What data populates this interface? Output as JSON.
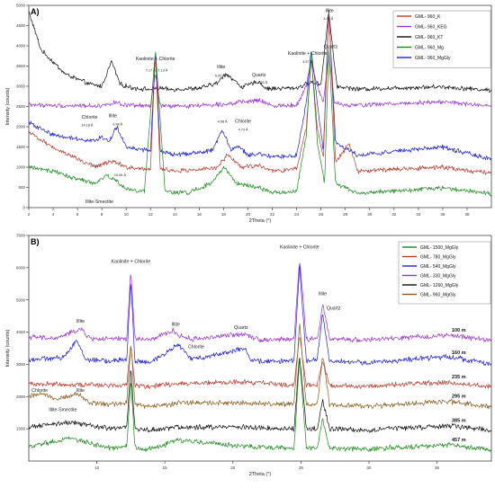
{
  "chart_data": [
    {
      "type": "line",
      "panel_label": "A)",
      "xlabel": "2Theta (°)",
      "ylabel": "Intensity (counts)",
      "xlim": [
        2,
        40
      ],
      "ylim": [
        0,
        5000
      ],
      "x_ticks": [
        2,
        4,
        6,
        8,
        10,
        12,
        14,
        16,
        18,
        20,
        22,
        24,
        26,
        28,
        30,
        32,
        34,
        36,
        38
      ],
      "y_ticks": [
        0,
        500,
        1000,
        1500,
        2000,
        2500,
        3000,
        3500,
        4000,
        4500,
        5000
      ],
      "legend": {
        "placement": "top-right",
        "entries": [
          {
            "name": "GML- 960_K",
            "color": "#c0392b"
          },
          {
            "name": "GML- 960_KEG",
            "color": "#9b30d9"
          },
          {
            "name": "GML- 960_KT",
            "color": "#111111"
          },
          {
            "name": "GML- 960_Mg",
            "color": "#1a8a1a"
          },
          {
            "name": "GML- 960_MgGly",
            "color": "#1f1fd8"
          }
        ]
      },
      "series": [
        {
          "name": "GML- 960_KT",
          "color": "#111111",
          "baseline": 2900,
          "x": [
            2,
            3,
            5,
            7,
            8,
            8.8,
            9.5,
            10.5,
            12,
            12.6,
            13.5,
            16,
            17.5,
            18.2,
            19.5,
            20.9,
            21.5,
            24,
            25.2,
            26,
            26.64,
            27.3,
            29,
            35.9,
            40
          ],
          "y": [
            4850,
            3900,
            3300,
            3050,
            3000,
            3620,
            3050,
            2960,
            2920,
            2960,
            2920,
            2950,
            3080,
            3320,
            2980,
            3120,
            2940,
            2960,
            3100,
            3050,
            4850,
            3000,
            2930,
            2990,
            2900
          ]
        },
        {
          "name": "GML- 960_KEG",
          "color": "#9b30d9",
          "baseline": 2500,
          "x": [
            2,
            4,
            8,
            9,
            10,
            12,
            12.4,
            12.8,
            14,
            18,
            20.9,
            22,
            24,
            24.8,
            25.2,
            25.7,
            26.2,
            26.64,
            27.1,
            28,
            35.9,
            40
          ],
          "y": [
            2550,
            2520,
            2520,
            2600,
            2520,
            2520,
            3300,
            2520,
            2500,
            2560,
            2650,
            2520,
            2540,
            3000,
            3650,
            3000,
            2600,
            3800,
            2600,
            2520,
            2620,
            2500
          ]
        },
        {
          "name": "GML- 960_MgGly",
          "color": "#1f1fd8",
          "baseline": 1200,
          "x": [
            2,
            4,
            6,
            7.5,
            8,
            8.6,
            9.2,
            10,
            12,
            12.4,
            12.8,
            14,
            17,
            17.9,
            18.6,
            19.3,
            20,
            20.9,
            22,
            24,
            24.8,
            25.2,
            25.7,
            26.2,
            26.64,
            27.2,
            29,
            35.9,
            40
          ],
          "y": [
            2100,
            1800,
            1700,
            1650,
            1750,
            1620,
            2000,
            1500,
            1400,
            3900,
            1400,
            1300,
            1400,
            1900,
            1450,
            1500,
            1300,
            1320,
            1250,
            1280,
            2600,
            3900,
            2600,
            1400,
            4900,
            1600,
            1300,
            1500,
            1200
          ]
        },
        {
          "name": "GML- 960_K",
          "color": "#c0392b",
          "baseline": 850,
          "x": [
            2,
            4,
            6,
            7.5,
            8,
            9,
            10,
            12,
            12.4,
            12.8,
            14,
            17.5,
            18.3,
            19.5,
            20.9,
            22,
            24,
            24.8,
            25.2,
            25.7,
            26.2,
            26.64,
            27.2,
            28.3,
            29,
            35.9,
            40
          ],
          "y": [
            1850,
            1500,
            1200,
            1000,
            1080,
            1150,
            1000,
            950,
            3800,
            950,
            900,
            980,
            1300,
            1000,
            1050,
            900,
            950,
            2000,
            3700,
            2000,
            1200,
            4900,
            1100,
            1600,
            900,
            1000,
            850
          ]
        },
        {
          "name": "GML- 960_Mg",
          "color": "#1a8a1a",
          "baseline": 350,
          "x": [
            2,
            3,
            4,
            6,
            7.5,
            8.4,
            9,
            10,
            11.5,
            12.4,
            13.2,
            15,
            17,
            18.1,
            19,
            20.9,
            22,
            24,
            24.8,
            25.2,
            25.7,
            26.3,
            26.64,
            27.2,
            29,
            35.9,
            40
          ],
          "y": [
            1000,
            950,
            900,
            700,
            600,
            800,
            700,
            450,
            400,
            3900,
            400,
            360,
            600,
            1000,
            600,
            500,
            370,
            400,
            1800,
            3900,
            1600,
            600,
            4000,
            600,
            360,
            480,
            350
          ]
        }
      ],
      "annotations": [
        {
          "text": "Illite",
          "x": 26.7,
          "y": 4830
        },
        {
          "text": "3.34 Å",
          "x": 26.6,
          "y": 4640
        },
        {
          "text": "Quartz",
          "x": 26.8,
          "y": 3950
        },
        {
          "text": "Kaolinite + Chlorite",
          "x": 24.9,
          "y": 3780
        },
        {
          "text": "3.57 Å",
          "x": 24.9,
          "y": 3580
        },
        {
          "text": "Kaolinite + Chlorite",
          "x": 12.4,
          "y": 3650
        },
        {
          "text": "7.17 Å",
          "x": 12.0,
          "y": 3370
        },
        {
          "text": "7.13 Å",
          "x": 13.0,
          "y": 3370
        },
        {
          "text": "Illite",
          "x": 17.8,
          "y": 3450
        },
        {
          "text": "5.00 Å",
          "x": 17.7,
          "y": 3230
        },
        {
          "text": "Quartz",
          "x": 20.9,
          "y": 3250
        },
        {
          "text": "4.25 Å",
          "x": 21.2,
          "y": 3070
        },
        {
          "text": "Chlorite",
          "x": 7.0,
          "y": 2200
        },
        {
          "text": "14.18 Å",
          "x": 6.8,
          "y": 2010
        },
        {
          "text": "Illite",
          "x": 8.9,
          "y": 2230
        },
        {
          "text": "9.98 Å",
          "x": 9.3,
          "y": 2030
        },
        {
          "text": "4.98 Å",
          "x": 17.9,
          "y": 2100
        },
        {
          "text": "Chlorite",
          "x": 19.6,
          "y": 2100
        },
        {
          "text": "4.73 Å",
          "x": 19.6,
          "y": 1900
        },
        {
          "text": "14.28 Å",
          "x": 7.5,
          "y": 1000
        },
        {
          "text": "10.06 Å",
          "x": 9.5,
          "y": 780
        },
        {
          "text": "Illite-Smectite",
          "x": 7.8,
          "y": 110
        }
      ]
    },
    {
      "type": "line",
      "panel_label": "B)",
      "xlabel": "2Theta (°)",
      "ylabel": "Intensity (counts)",
      "xlim": [
        5,
        39
      ],
      "ylim": [
        0,
        7000
      ],
      "x_ticks": [
        10,
        15,
        20,
        25,
        30,
        35
      ],
      "y_ticks": [
        1000,
        2000,
        3000,
        4000,
        5000,
        6000,
        7000
      ],
      "legend": {
        "placement": "top-right",
        "entries": [
          {
            "name": "GML- 1500_MgGly",
            "color": "#1a8a1a"
          },
          {
            "name": "GML- 780_MgGly",
            "color": "#c0392b"
          },
          {
            "name": "GML- 540_MgGly",
            "color": "#1f1fd8"
          },
          {
            "name": "GML- 330_MgGly",
            "color": "#9b30d9"
          },
          {
            "name": "GML- 1260_MgGly",
            "color": "#111111"
          },
          {
            "name": "GML- 960_MgGly",
            "color": "#8b5a1a"
          }
        ]
      },
      "series": [
        {
          "name": "GML- 330_MgGly",
          "color": "#9b30d9",
          "depth": "100 m",
          "baseline": 3750,
          "x": [
            5,
            7,
            8.8,
            9.5,
            11,
            12.2,
            12.5,
            12.8,
            14,
            15.6,
            16,
            17,
            20.9,
            22,
            24.5,
            24.9,
            25.4,
            26.2,
            26.6,
            27.1,
            30,
            35.9,
            39
          ],
          "y": [
            3850,
            3800,
            4100,
            3800,
            3780,
            3800,
            5900,
            3800,
            3760,
            4050,
            3900,
            3780,
            3950,
            3760,
            3780,
            6300,
            3780,
            3780,
            4900,
            3780,
            3760,
            3900,
            3750
          ]
        },
        {
          "name": "GML- 540_MgGly",
          "color": "#1f1fd8",
          "depth": "160 m",
          "baseline": 3050,
          "x": [
            5,
            7.5,
            8.5,
            9.2,
            11,
            12.2,
            12.5,
            12.8,
            14,
            15.5,
            16,
            17,
            20.9,
            21.3,
            24.5,
            24.9,
            25.4,
            26.2,
            26.6,
            27.1,
            30,
            35.9,
            39
          ],
          "y": [
            3150,
            3200,
            3750,
            3150,
            3100,
            3150,
            5600,
            3100,
            3050,
            3500,
            3600,
            3150,
            3500,
            3100,
            3100,
            6100,
            3100,
            3150,
            4600,
            3100,
            3050,
            3250,
            3000
          ]
        },
        {
          "name": "GML- 780_MgGly",
          "color": "#c0392b",
          "depth": "235 m",
          "baseline": 2300,
          "x": [
            5,
            8,
            11,
            12.2,
            12.5,
            12.8,
            14,
            16,
            20.9,
            24.5,
            24.9,
            25.4,
            26.2,
            26.6,
            27.1,
            30,
            35.9,
            39
          ],
          "y": [
            2400,
            2380,
            2350,
            2380,
            3600,
            2350,
            2320,
            2400,
            2450,
            2350,
            3900,
            2350,
            2350,
            3100,
            2350,
            2320,
            2450,
            2300
          ]
        },
        {
          "name": "GML- 960_MgGly",
          "color": "#8b5a1a",
          "depth": "295 m",
          "baseline": 1700,
          "x": [
            5,
            6,
            7,
            8,
            8.5,
            9.5,
            11,
            12.2,
            12.5,
            12.8,
            14,
            16,
            20.9,
            24.5,
            24.9,
            25.4,
            26.2,
            26.6,
            27.1,
            30,
            35.9,
            39
          ],
          "y": [
            2000,
            2100,
            1950,
            2000,
            2100,
            1800,
            1750,
            1800,
            3700,
            1750,
            1700,
            1800,
            1800,
            1750,
            4300,
            1750,
            1750,
            3300,
            1750,
            1700,
            1850,
            1700
          ]
        },
        {
          "name": "GML- 1260_MgGly",
          "color": "#111111",
          "depth": "385 m",
          "baseline": 950,
          "x": [
            5,
            8,
            11,
            12.2,
            12.5,
            12.8,
            14,
            16,
            20.9,
            24.5,
            24.9,
            25.4,
            26.2,
            26.6,
            27.1,
            30,
            35.9,
            39
          ],
          "y": [
            1050,
            1200,
            1000,
            1050,
            2900,
            1000,
            960,
            1050,
            1050,
            1000,
            3300,
            1000,
            1000,
            1900,
            1000,
            960,
            1100,
            950
          ]
        },
        {
          "name": "GML- 1500_MgGly",
          "color": "#1a8a1a",
          "depth": "457 m",
          "baseline": 350,
          "x": [
            5,
            8,
            11,
            12.2,
            12.5,
            12.8,
            14,
            16,
            20.9,
            24.5,
            24.9,
            25.4,
            26.2,
            26.6,
            27.1,
            30,
            35.9,
            39
          ],
          "y": [
            450,
            700,
            400,
            450,
            2600,
            400,
            370,
            650,
            450,
            400,
            3200,
            400,
            400,
            1300,
            400,
            370,
            500,
            350
          ]
        }
      ],
      "annotations": [
        {
          "text": "Kaolinite + Chlorite",
          "x": 24.9,
          "y": 6600
        },
        {
          "text": "Kaolinite + Chlorite",
          "x": 12.5,
          "y": 6150
        },
        {
          "text": "Illite",
          "x": 26.6,
          "y": 5150
        },
        {
          "text": "Quartz",
          "x": 27.4,
          "y": 4700
        },
        {
          "text": "Illite",
          "x": 8.8,
          "y": 4300
        },
        {
          "text": "Illite",
          "x": 15.8,
          "y": 4200
        },
        {
          "text": "Quartz",
          "x": 20.6,
          "y": 4100
        },
        {
          "text": "Chlorite",
          "x": 17.3,
          "y": 3500
        },
        {
          "text": "Chlorite",
          "x": 5.8,
          "y": 2150
        },
        {
          "text": "Illite",
          "x": 8.8,
          "y": 2150
        },
        {
          "text": "Illite-Smectite",
          "x": 7.5,
          "y": 1550
        }
      ]
    }
  ]
}
